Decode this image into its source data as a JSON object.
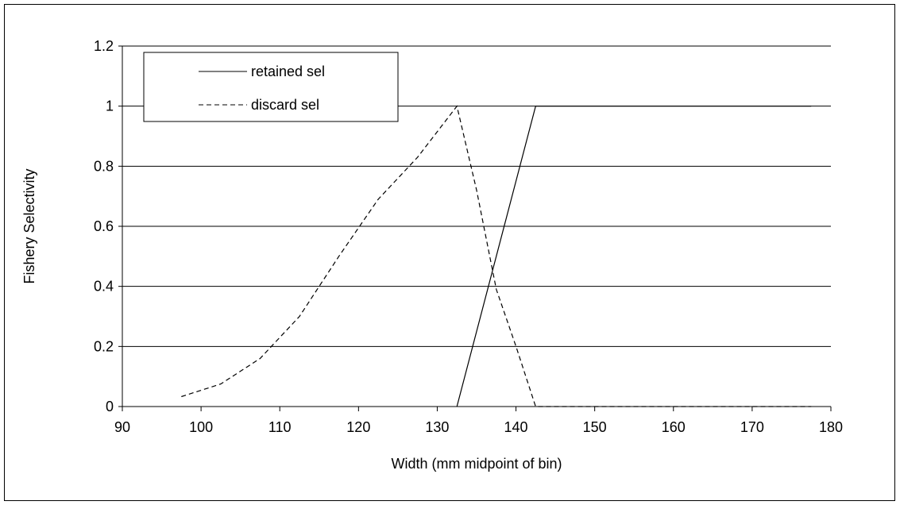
{
  "chart_data": {
    "type": "line",
    "title": "",
    "xlabel": "Width (mm midpoint of bin)",
    "ylabel": "Fishery Selectivity",
    "xlim": [
      90,
      180
    ],
    "ylim": [
      0,
      1.2
    ],
    "x_ticks": [
      90,
      100,
      110,
      120,
      130,
      140,
      150,
      160,
      170,
      180
    ],
    "y_ticks": [
      0,
      0.2,
      0.4,
      0.6,
      0.8,
      1,
      1.2
    ],
    "x_tick_labels": [
      "90",
      "100",
      "110",
      "120",
      "130",
      "140",
      "150",
      "160",
      "170",
      "180"
    ],
    "y_tick_labels": [
      "0",
      "0.2",
      "0.4",
      "0.6",
      "0.8",
      "1",
      "1.2"
    ],
    "grid": "horizontal",
    "legend_position": "top-left",
    "series": [
      {
        "name": "retained sel",
        "style": "solid",
        "color": "#000000",
        "x": [
          132.5,
          142.5,
          177.5
        ],
        "y": [
          0,
          1,
          1
        ]
      },
      {
        "name": "discard sel",
        "style": "dashed",
        "color": "#000000",
        "x": [
          97.5,
          102.5,
          107.5,
          112.5,
          117.5,
          122.5,
          127.5,
          132.5,
          135,
          137.5,
          140,
          142.5,
          177.5
        ],
        "y": [
          0.033,
          0.075,
          0.16,
          0.3,
          0.5,
          0.69,
          0.83,
          1,
          0.72,
          0.39,
          0.2,
          0,
          0
        ]
      }
    ]
  }
}
